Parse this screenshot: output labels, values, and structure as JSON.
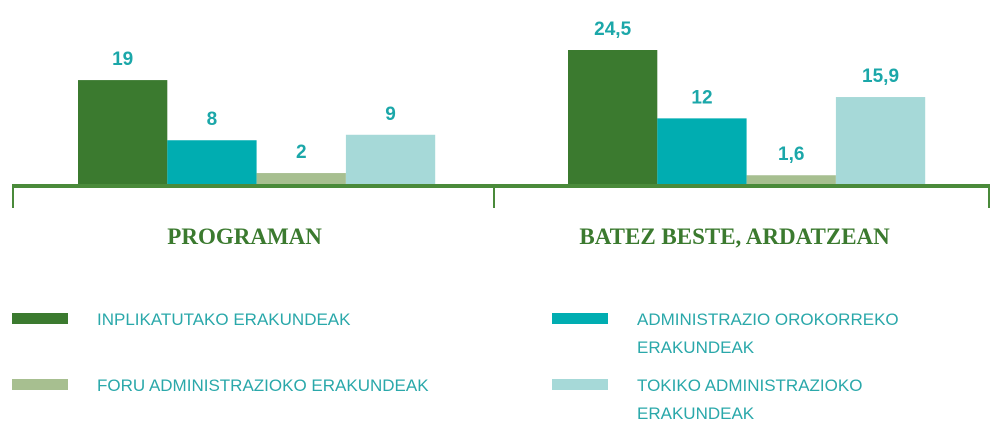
{
  "chart_data": {
    "type": "bar",
    "categories": [
      "PROGRAMAN",
      "BATEZ BESTE, ARDATZEAN"
    ],
    "series": [
      {
        "name": "INPLIKATUTAKO ERAKUNDEAK",
        "color": "#3b7a2f",
        "values": [
          19,
          24.5
        ],
        "value_labels": [
          "19",
          "24,5"
        ]
      },
      {
        "name": "ADMINISTRAZIO OROKORREKO ERAKUNDEAK",
        "color": "#00adb1",
        "values": [
          8,
          12
        ],
        "value_labels": [
          "8",
          "12"
        ]
      },
      {
        "name": "FORU ADMINISTRAZIOKO ERAKUNDEAK",
        "color": "#a7bf90",
        "values": [
          2,
          1.6
        ],
        "value_labels": [
          "2",
          "1,6"
        ]
      },
      {
        "name": "TOKIKO ADMINISTRAZIOKO ERAKUNDEAK",
        "color": "#a6d9d8",
        "values": [
          9,
          15.9
        ],
        "value_labels": [
          "9",
          "15,9"
        ]
      }
    ]
  }
}
